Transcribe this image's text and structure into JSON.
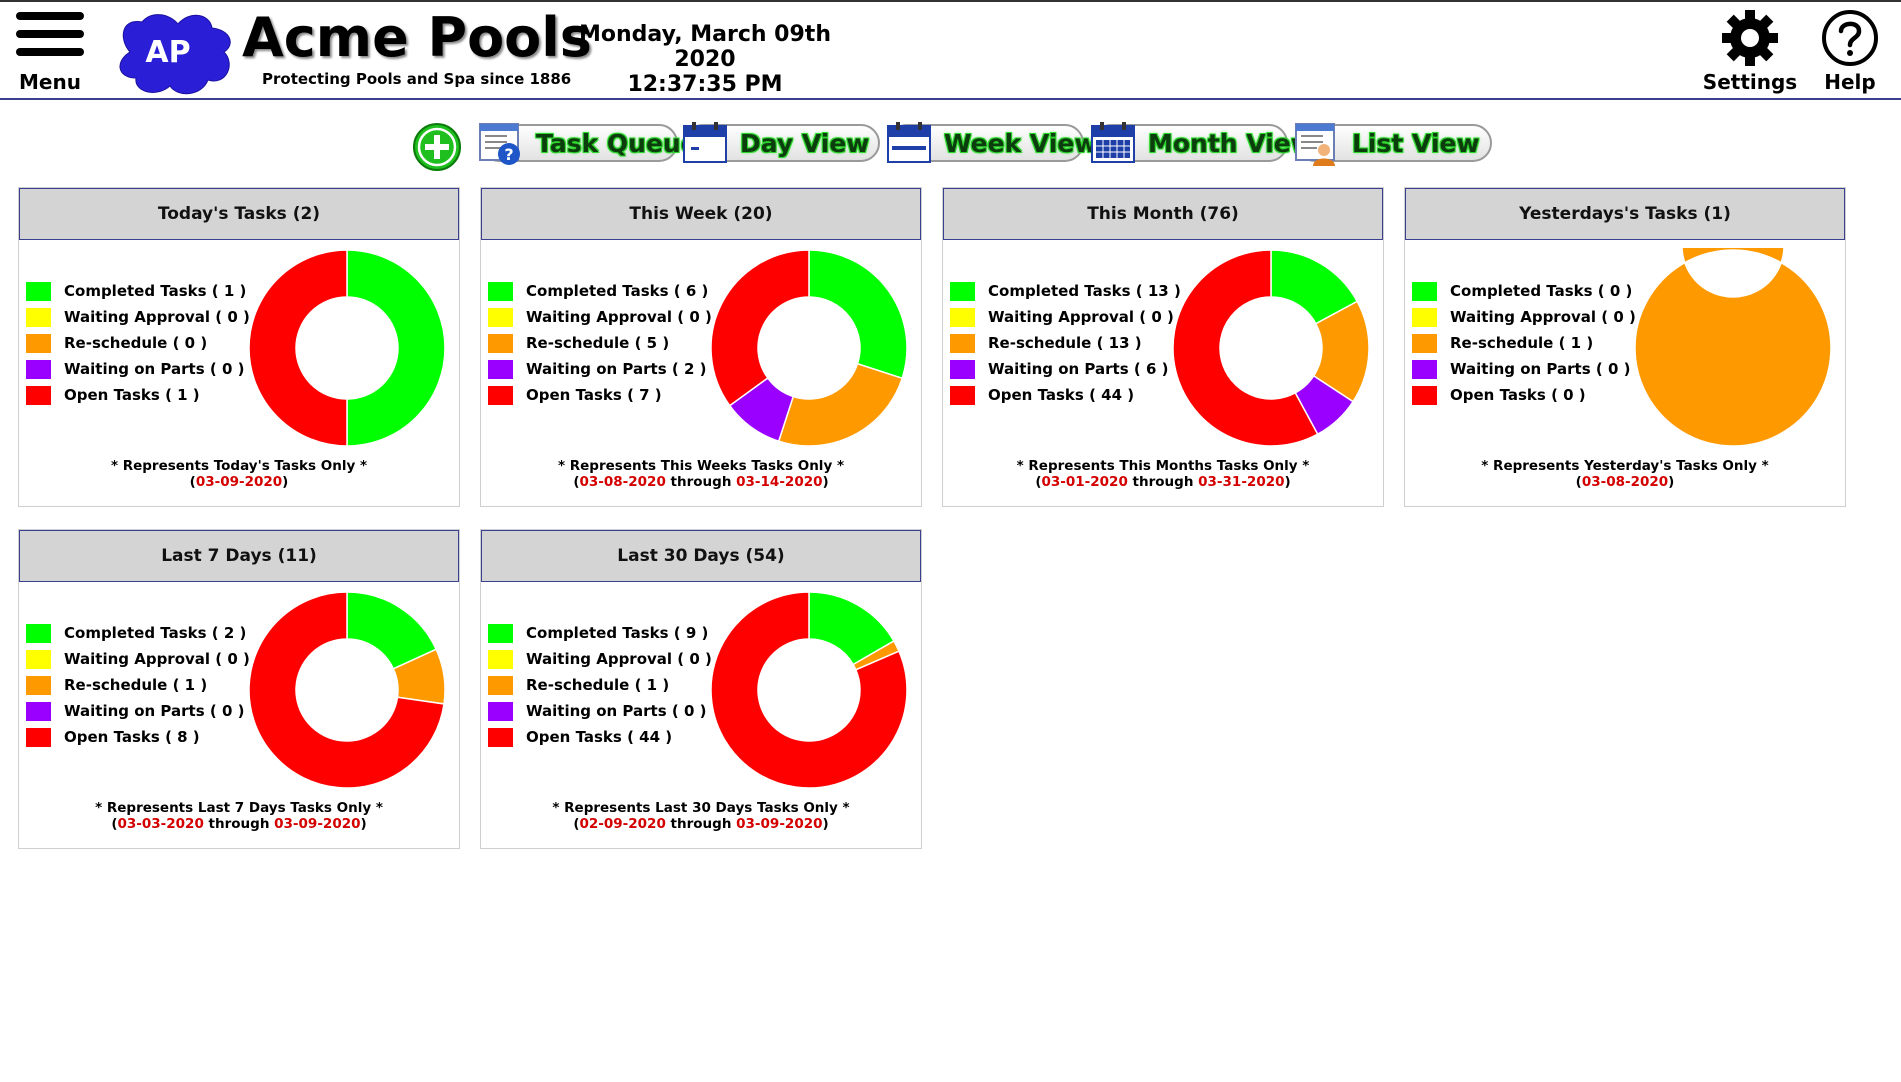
{
  "header": {
    "menu_label": "Menu",
    "logo_text": "AP",
    "brand_title": "Acme Pools",
    "brand_tagline": "Protecting Pools and Spa since 1886",
    "date": "Monday, March 09th 2020",
    "time": "12:37:35 PM",
    "settings_label": "Settings",
    "help_label": "Help"
  },
  "toolbar": {
    "add_icon": "plus-circle-icon",
    "buttons": [
      {
        "label": "Task Queue",
        "icon": "task-queue-icon"
      },
      {
        "label": "Day View",
        "icon": "calendar-day-icon"
      },
      {
        "label": "Week View",
        "icon": "calendar-week-icon"
      },
      {
        "label": "Month View",
        "icon": "calendar-month-icon"
      },
      {
        "label": "List View",
        "icon": "list-view-icon"
      }
    ]
  },
  "colors": {
    "completed": "#00ff00",
    "waiting_approval": "#ffff00",
    "reschedule": "#ff9900",
    "waiting_parts": "#9900ff",
    "open": "#ff0000",
    "date_red": "#d40000"
  },
  "legend_labels": [
    "Completed Tasks",
    "Waiting Approval",
    "Re-schedule",
    "Waiting on Parts",
    "Open Tasks"
  ],
  "cards": [
    {
      "title": "Today's Tasks (2)",
      "counts": [
        1,
        0,
        0,
        0,
        1
      ],
      "count_labels": [
        "( 1 )",
        "( 0 )",
        "( 0 )",
        "( 0 )",
        "( 1 )"
      ],
      "footnote": "* Represents Today's Tasks Only *",
      "range_start": "03-09-2020",
      "range_join": "",
      "range_end": ""
    },
    {
      "title": "This Week (20)",
      "counts": [
        6,
        0,
        5,
        2,
        7
      ],
      "count_labels": [
        "( 6 )",
        "( 0 )",
        "( 5 )",
        "( 2 )",
        "( 7 )"
      ],
      "footnote": "* Represents This Weeks Tasks Only *",
      "range_start": "03-08-2020",
      "range_join": " through ",
      "range_end": "03-14-2020"
    },
    {
      "title": "This Month (76)",
      "counts": [
        13,
        0,
        13,
        6,
        44
      ],
      "count_labels": [
        "( 13 )",
        "( 0 )",
        "( 13 )",
        "( 6 )",
        "( 44 )"
      ],
      "footnote": "* Represents This Months Tasks Only *",
      "range_start": "03-01-2020",
      "range_join": " through ",
      "range_end": "03-31-2020"
    },
    {
      "title": "Yesterdays's Tasks (1)",
      "counts": [
        0,
        0,
        1,
        0,
        0
      ],
      "count_labels": [
        "( 0 )",
        "( 0 )",
        "( 1 )",
        "( 0 )",
        "( 0 )"
      ],
      "footnote": "* Represents Yesterday's Tasks Only *",
      "range_start": "03-08-2020",
      "range_join": "",
      "range_end": ""
    },
    {
      "title": "Last 7 Days (11)",
      "counts": [
        2,
        0,
        1,
        0,
        8
      ],
      "count_labels": [
        "( 2 )",
        "( 0 )",
        "( 1 )",
        "( 0 )",
        "( 8 )"
      ],
      "footnote": "* Represents Last 7 Days Tasks Only *",
      "range_start": "03-03-2020",
      "range_join": " through ",
      "range_end": "03-09-2020"
    },
    {
      "title": "Last 30 Days (54)",
      "counts": [
        9,
        0,
        1,
        0,
        44
      ],
      "count_labels": [
        "( 9 )",
        "( 0 )",
        "( 1 )",
        "( 0 )",
        "( 44 )"
      ],
      "footnote": "* Represents Last 30 Days Tasks Only *",
      "range_start": "02-09-2020",
      "range_join": " through ",
      "range_end": "03-09-2020"
    }
  ],
  "chart_data": [
    {
      "type": "pie",
      "categories": [
        "Completed Tasks",
        "Waiting Approval",
        "Re-schedule",
        "Waiting on Parts",
        "Open Tasks"
      ],
      "values": [
        1,
        0,
        0,
        0,
        1
      ]
    },
    {
      "type": "pie",
      "categories": [
        "Completed Tasks",
        "Waiting Approval",
        "Re-schedule",
        "Waiting on Parts",
        "Open Tasks"
      ],
      "values": [
        6,
        0,
        5,
        2,
        7
      ]
    },
    {
      "type": "pie",
      "categories": [
        "Completed Tasks",
        "Waiting Approval",
        "Re-schedule",
        "Waiting on Parts",
        "Open Tasks"
      ],
      "values": [
        13,
        0,
        13,
        6,
        44
      ]
    },
    {
      "type": "pie",
      "categories": [
        "Completed Tasks",
        "Waiting Approval",
        "Re-schedule",
        "Waiting on Parts",
        "Open Tasks"
      ],
      "values": [
        0,
        0,
        1,
        0,
        0
      ]
    },
    {
      "type": "pie",
      "categories": [
        "Completed Tasks",
        "Waiting Approval",
        "Re-schedule",
        "Waiting on Parts",
        "Open Tasks"
      ],
      "values": [
        2,
        0,
        1,
        0,
        8
      ]
    },
    {
      "type": "pie",
      "categories": [
        "Completed Tasks",
        "Waiting Approval",
        "Re-schedule",
        "Waiting on Parts",
        "Open Tasks"
      ],
      "values": [
        9,
        0,
        1,
        0,
        44
      ]
    }
  ]
}
